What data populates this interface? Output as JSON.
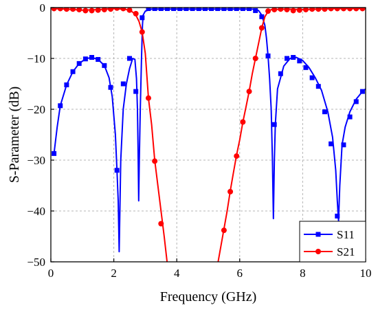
{
  "chart_data": {
    "type": "line",
    "xlabel": "Frequency (GHz)",
    "ylabel": "S-Parameter (dB)",
    "xlim": [
      0,
      10
    ],
    "ylim": [
      -50,
      0
    ],
    "xticks": [
      0,
      2,
      4,
      6,
      8,
      10
    ],
    "yticks": [
      0,
      -10,
      -20,
      -30,
      -40,
      -50
    ],
    "xtick_labels": [
      "0",
      "2",
      "4",
      "6",
      "8",
      "10"
    ],
    "ytick_labels": [
      "0",
      "−10",
      "−20",
      "−30",
      "−40",
      "−50"
    ],
    "grid": true,
    "legend_position": "bottom-right",
    "series": [
      {
        "name": "S11",
        "color": "#0000ff",
        "marker": "square",
        "line": [
          [
            0.1,
            -28.7
          ],
          [
            0.2,
            -23.5
          ],
          [
            0.3,
            -19.3
          ],
          [
            0.5,
            -15.2
          ],
          [
            0.7,
            -12.6
          ],
          [
            0.9,
            -11
          ],
          [
            1.1,
            -10.1
          ],
          [
            1.3,
            -9.8
          ],
          [
            1.5,
            -10.2
          ],
          [
            1.7,
            -11.4
          ],
          [
            1.85,
            -13.8
          ],
          [
            1.95,
            -17.5
          ],
          [
            2.05,
            -25
          ],
          [
            2.1,
            -32
          ],
          [
            2.14,
            -38
          ],
          [
            2.17,
            -48
          ],
          [
            2.22,
            -30
          ],
          [
            2.3,
            -20
          ],
          [
            2.4,
            -15
          ],
          [
            2.5,
            -12
          ],
          [
            2.6,
            -10
          ],
          [
            2.67,
            -10.2
          ],
          [
            2.72,
            -14
          ],
          [
            2.75,
            -20
          ],
          [
            2.77,
            -28
          ],
          [
            2.79,
            -38
          ],
          [
            2.81,
            -30
          ],
          [
            2.84,
            -20
          ],
          [
            2.88,
            -10
          ],
          [
            2.91,
            -3.5
          ],
          [
            2.93,
            -1.5
          ],
          [
            3.0,
            -0.7
          ],
          [
            3.2,
            -0.3
          ],
          [
            6.4,
            -0.3
          ],
          [
            6.6,
            -0.6
          ],
          [
            6.7,
            -1.5
          ],
          [
            6.8,
            -3.5
          ],
          [
            6.85,
            -6
          ],
          [
            6.9,
            -9.5
          ],
          [
            6.95,
            -14
          ],
          [
            7.0,
            -20
          ],
          [
            7.04,
            -30
          ],
          [
            7.07,
            -41.5
          ],
          [
            7.1,
            -30
          ],
          [
            7.13,
            -23
          ],
          [
            7.2,
            -16
          ],
          [
            7.4,
            -11.5
          ],
          [
            7.6,
            -10
          ],
          [
            7.8,
            -9.8
          ],
          [
            8.0,
            -10.4
          ],
          [
            8.2,
            -11.8
          ],
          [
            8.4,
            -13.8
          ],
          [
            8.6,
            -16.3
          ],
          [
            8.8,
            -20.5
          ],
          [
            8.95,
            -25.5
          ],
          [
            9.05,
            -32
          ],
          [
            9.1,
            -38
          ],
          [
            9.14,
            -42
          ],
          [
            9.18,
            -35
          ],
          [
            9.25,
            -27
          ],
          [
            9.35,
            -23.5
          ],
          [
            9.5,
            -20.5
          ],
          [
            9.7,
            -18
          ],
          [
            9.9,
            -16.5
          ],
          [
            10,
            -16
          ]
        ],
        "markers": [
          [
            0.1,
            -28.7
          ],
          [
            0.3,
            -19.3
          ],
          [
            0.5,
            -15.2
          ],
          [
            0.7,
            -12.6
          ],
          [
            0.9,
            -11
          ],
          [
            1.1,
            -10.1
          ],
          [
            1.3,
            -9.8
          ],
          [
            1.5,
            -10.2
          ],
          [
            1.7,
            -11.4
          ],
          [
            1.9,
            -15.7
          ],
          [
            2.1,
            -32
          ],
          [
            2.3,
            -15
          ],
          [
            2.5,
            -10
          ],
          [
            2.7,
            -16.5
          ],
          [
            2.9,
            -2
          ],
          [
            3.1,
            -0.2
          ],
          [
            3.3,
            -0.2
          ],
          [
            3.5,
            -0.2
          ],
          [
            3.7,
            -0.2
          ],
          [
            3.9,
            -0.2
          ],
          [
            4.1,
            -0.2
          ],
          [
            4.3,
            -0.2
          ],
          [
            4.5,
            -0.2
          ],
          [
            4.7,
            -0.2
          ],
          [
            4.9,
            -0.2
          ],
          [
            5.1,
            -0.2
          ],
          [
            5.3,
            -0.2
          ],
          [
            5.5,
            -0.2
          ],
          [
            5.7,
            -0.2
          ],
          [
            5.9,
            -0.2
          ],
          [
            6.1,
            -0.2
          ],
          [
            6.3,
            -0.2
          ],
          [
            6.5,
            -0.6
          ],
          [
            6.7,
            -1.8
          ],
          [
            6.9,
            -9.5
          ],
          [
            7.1,
            -23
          ],
          [
            7.3,
            -13
          ],
          [
            7.5,
            -10
          ],
          [
            7.7,
            -9.8
          ],
          [
            7.9,
            -10.5
          ],
          [
            8.1,
            -11.8
          ],
          [
            8.3,
            -13.8
          ],
          [
            8.5,
            -15.5
          ],
          [
            8.7,
            -20.5
          ],
          [
            8.9,
            -26.8
          ],
          [
            9.1,
            -41
          ],
          [
            9.3,
            -27
          ],
          [
            9.5,
            -21.5
          ],
          [
            9.7,
            -18.5
          ],
          [
            9.9,
            -16.5
          ]
        ]
      },
      {
        "name": "S21",
        "color": "#ff0000",
        "marker": "circle",
        "line": [
          [
            0.1,
            -0.2
          ],
          [
            0.5,
            -0.3
          ],
          [
            1.0,
            -0.5
          ],
          [
            1.5,
            -0.4
          ],
          [
            2.0,
            -0.2
          ],
          [
            2.3,
            -0.3
          ],
          [
            2.5,
            -0.5
          ],
          [
            2.6,
            -0.9
          ],
          [
            2.7,
            -1.5
          ],
          [
            2.8,
            -2.7
          ],
          [
            2.9,
            -4.8
          ],
          [
            3.0,
            -9
          ],
          [
            3.1,
            -17.8
          ],
          [
            3.2,
            -23
          ],
          [
            3.3,
            -30
          ],
          [
            3.4,
            -35
          ],
          [
            3.5,
            -40
          ],
          [
            3.6,
            -45
          ],
          [
            3.7,
            -50.5
          ],
          [
            5.3,
            -50.5
          ],
          [
            5.4,
            -47
          ],
          [
            5.5,
            -43.5
          ],
          [
            5.6,
            -40
          ],
          [
            5.7,
            -36
          ],
          [
            5.8,
            -32.5
          ],
          [
            5.9,
            -29
          ],
          [
            6.0,
            -26
          ],
          [
            6.1,
            -22.5
          ],
          [
            6.2,
            -19.5
          ],
          [
            6.3,
            -16.5
          ],
          [
            6.4,
            -13
          ],
          [
            6.5,
            -10
          ],
          [
            6.6,
            -7
          ],
          [
            6.7,
            -4
          ],
          [
            6.8,
            -1.8
          ],
          [
            6.9,
            -0.8
          ],
          [
            7.0,
            -0.4
          ],
          [
            7.5,
            -0.3
          ],
          [
            8.0,
            -0.4
          ],
          [
            8.5,
            -0.3
          ],
          [
            9.0,
            -0.2
          ],
          [
            9.5,
            -0.2
          ],
          [
            10,
            -0.2
          ]
        ],
        "markers": [
          [
            0.1,
            -0.2
          ],
          [
            0.3,
            -0.2
          ],
          [
            0.5,
            -0.3
          ],
          [
            0.7,
            -0.3
          ],
          [
            0.9,
            -0.4
          ],
          [
            1.1,
            -0.6
          ],
          [
            1.3,
            -0.6
          ],
          [
            1.5,
            -0.5
          ],
          [
            1.7,
            -0.4
          ],
          [
            1.9,
            -0.3
          ],
          [
            2.1,
            -0.1
          ],
          [
            2.3,
            -0.2
          ],
          [
            2.5,
            -0.5
          ],
          [
            2.7,
            -1.2
          ],
          [
            2.9,
            -4.8
          ],
          [
            3.1,
            -17.8
          ],
          [
            3.3,
            -30.2
          ],
          [
            3.5,
            -42.5
          ],
          [
            5.5,
            -43.8
          ],
          [
            5.7,
            -36.2
          ],
          [
            5.9,
            -29.2
          ],
          [
            6.1,
            -22.5
          ],
          [
            6.3,
            -16.5
          ],
          [
            6.5,
            -10
          ],
          [
            6.7,
            -4
          ],
          [
            6.9,
            -0.7
          ],
          [
            7.1,
            -0.4
          ],
          [
            7.3,
            -0.3
          ],
          [
            7.5,
            -0.4
          ],
          [
            7.7,
            -0.6
          ],
          [
            7.9,
            -0.5
          ],
          [
            8.1,
            -0.4
          ],
          [
            8.3,
            -0.3
          ],
          [
            8.5,
            -0.3
          ],
          [
            8.7,
            -0.3
          ],
          [
            8.9,
            -0.2
          ],
          [
            9.1,
            -0.2
          ],
          [
            9.3,
            -0.2
          ],
          [
            9.5,
            -0.2
          ],
          [
            9.7,
            -0.2
          ],
          [
            9.9,
            -0.2
          ]
        ]
      }
    ]
  }
}
